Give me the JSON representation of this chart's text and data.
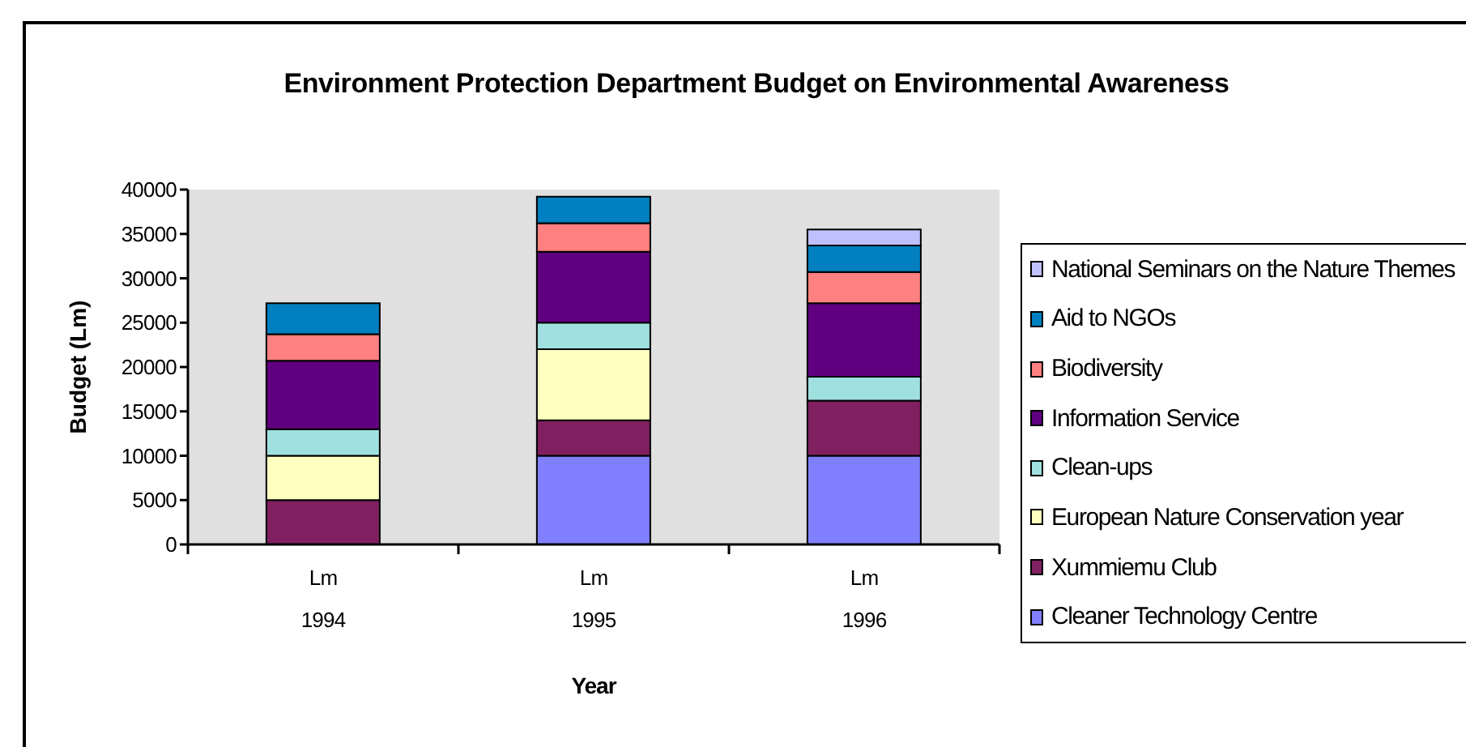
{
  "chart_data": {
    "type": "bar",
    "title": "Environment Protection Department Budget on Environmental Awareness",
    "xlabel": "Year",
    "ylabel": "Budget (Lm)",
    "categories": [
      "Lm\n1994",
      "Lm\n1995",
      "Lm\n1996"
    ],
    "series": [
      {
        "name": "Cleaner Technology Centre",
        "color": "#8080ff",
        "values": [
          null,
          10000,
          10000
        ]
      },
      {
        "name": "Xummiemu Club",
        "color": "#802060",
        "values": [
          5000,
          4000,
          6200
        ]
      },
      {
        "name": "European Nature Conservation year",
        "color": "#ffffc0",
        "values": [
          5000,
          8000,
          null
        ]
      },
      {
        "name": "Clean-ups",
        "color": "#a0e0e0",
        "values": [
          3000,
          3000,
          2700
        ]
      },
      {
        "name": "Information Service",
        "color": "#600080",
        "values": [
          7700,
          8000,
          8300
        ]
      },
      {
        "name": "Biodiversity",
        "color": "#ff8080",
        "values": [
          3000,
          3200,
          3500
        ]
      },
      {
        "name": "Aid to NGOs",
        "color": "#0080c0",
        "values": [
          3500,
          3000,
          3000
        ]
      },
      {
        "name": "National Seminars on the Nature Themes",
        "color": "#c0c0ff",
        "values": [
          null,
          null,
          1800
        ]
      }
    ],
    "stacked": true,
    "ylim": [
      0,
      40000
    ],
    "yticks": [
      0,
      5000,
      10000,
      15000,
      20000,
      25000,
      30000,
      35000,
      40000
    ],
    "legend": "right"
  }
}
